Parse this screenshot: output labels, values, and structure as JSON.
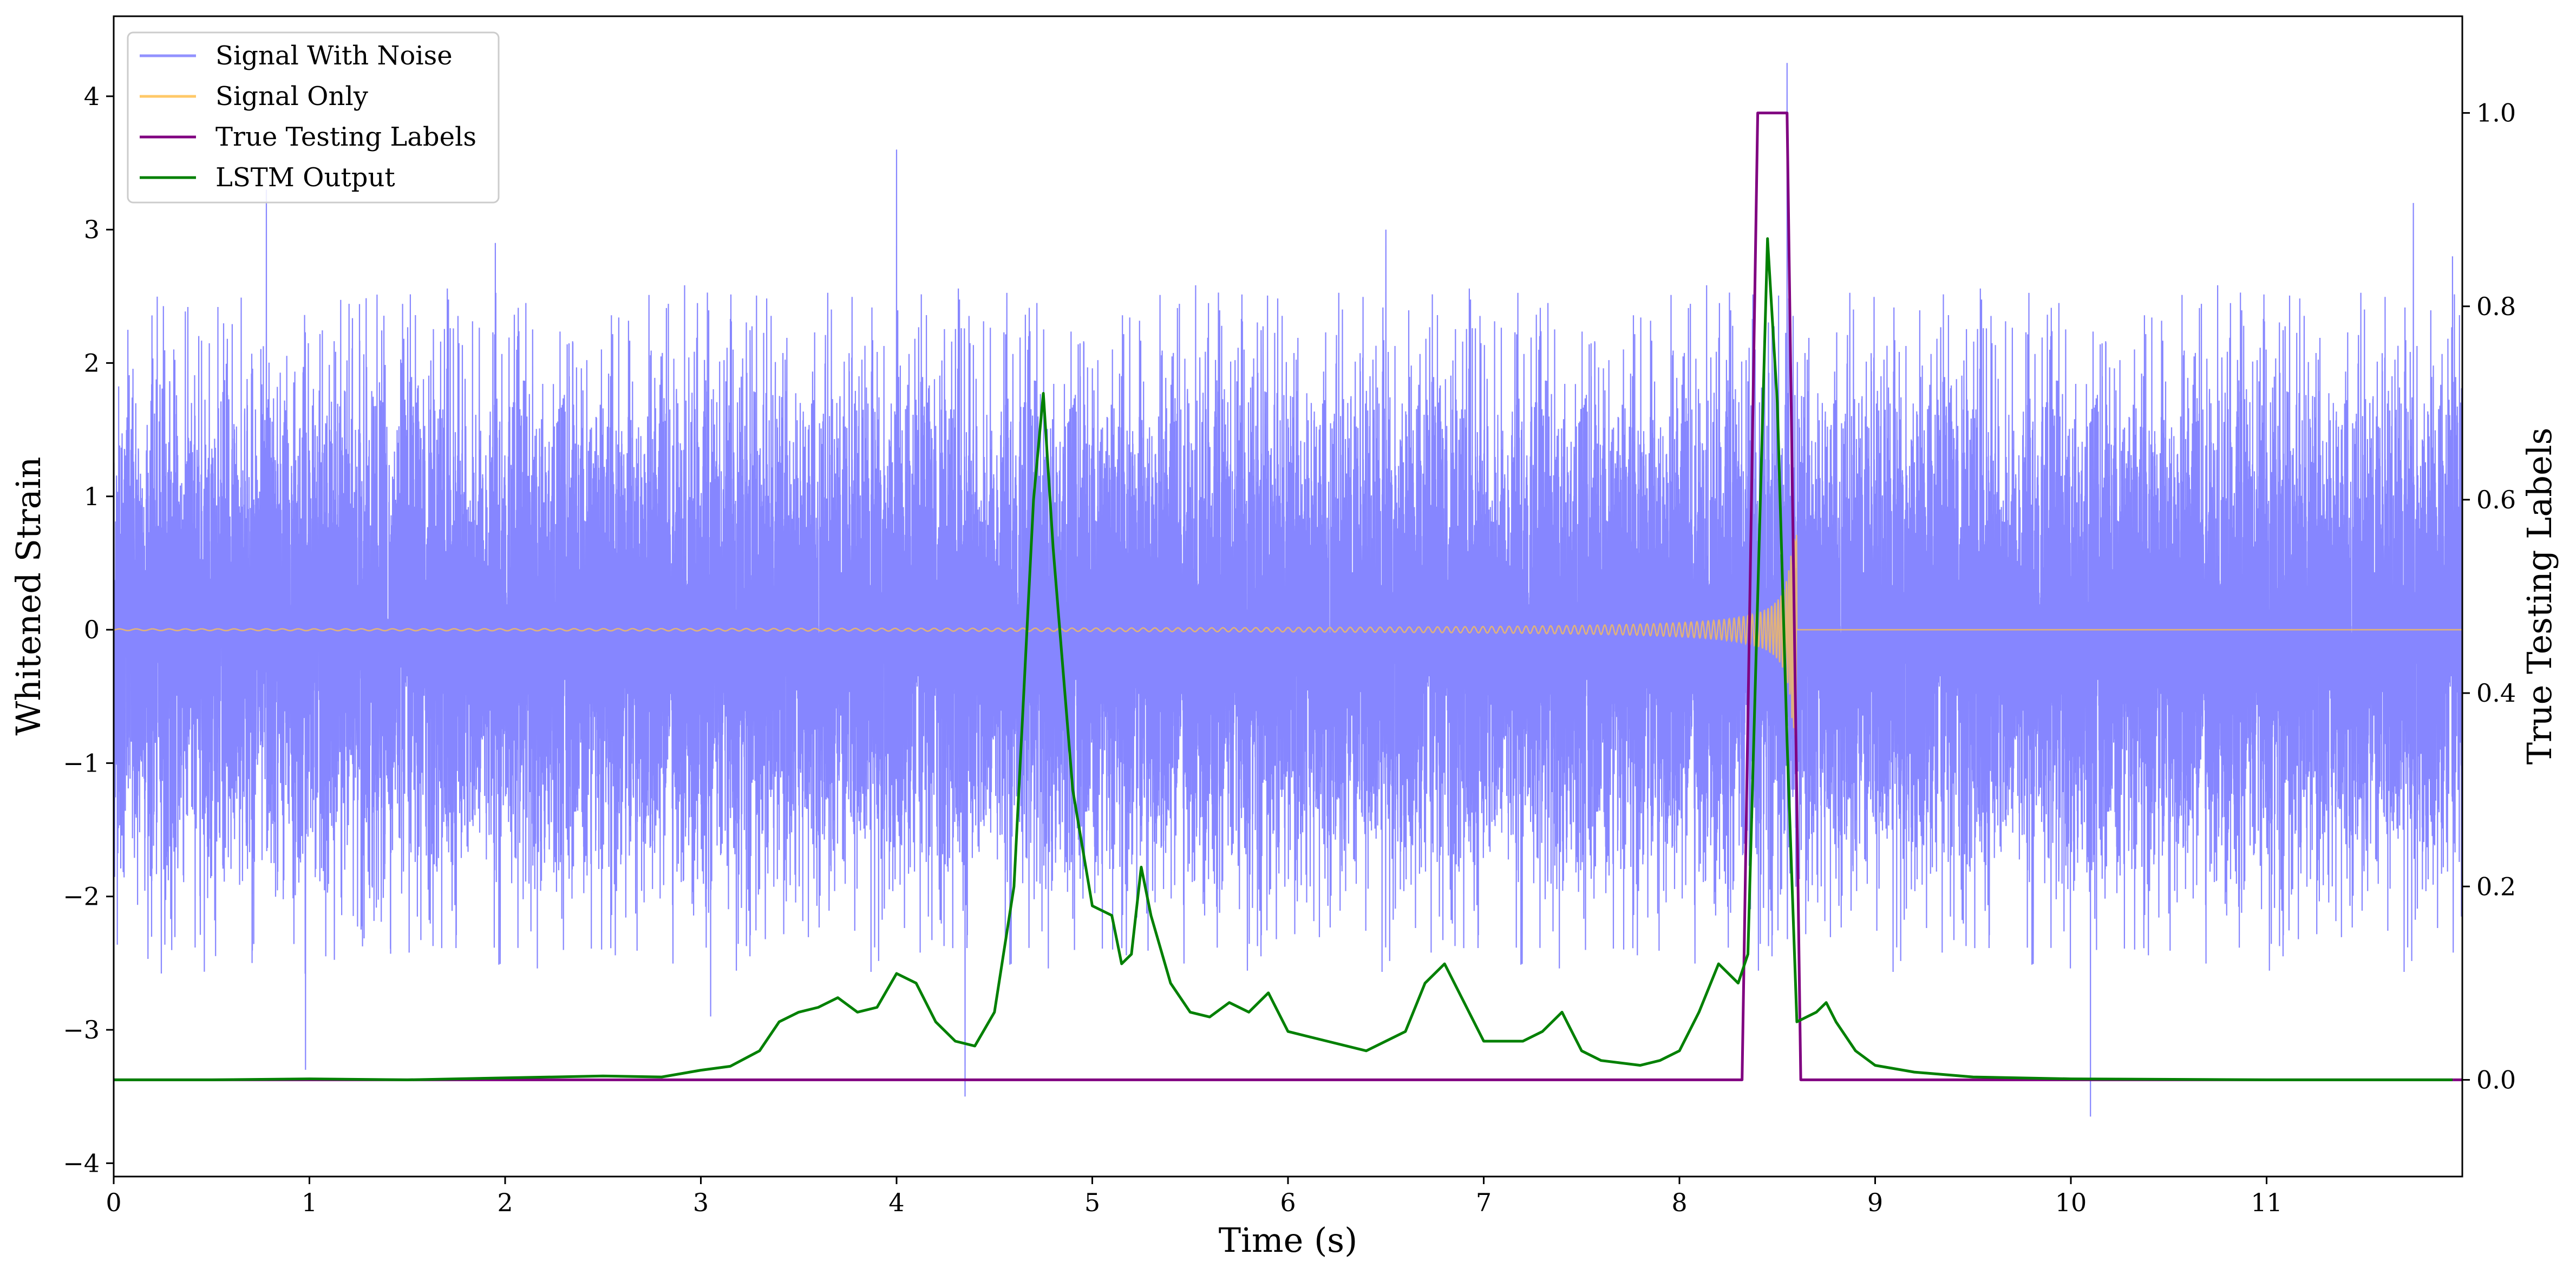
{
  "chart_data": {
    "type": "line",
    "title": "",
    "xlabel": "Time (s)",
    "ylabel": "Whitened Strain",
    "y2label": "True Testing Labels",
    "xlim": [
      0,
      12
    ],
    "ylim": [
      -4.1,
      4.6
    ],
    "y2lim": [
      -0.1,
      1.1
    ],
    "xticks": [
      0,
      1,
      2,
      3,
      4,
      5,
      6,
      7,
      8,
      9,
      10,
      11
    ],
    "yticks": [
      -4,
      -3,
      -2,
      -1,
      0,
      1,
      2,
      3,
      4
    ],
    "ytick_labels": [
      "−4",
      "−3",
      "−2",
      "−1",
      "0",
      "1",
      "2",
      "3",
      "4"
    ],
    "y2ticks": [
      0.0,
      0.2,
      0.4,
      0.6,
      0.8,
      1.0
    ],
    "y2tick_labels": [
      "0.0",
      "0.2",
      "0.4",
      "0.6",
      "0.8",
      "1.0"
    ],
    "grid": false,
    "legend_position": "top-left",
    "series": [
      {
        "name": "Signal With Noise",
        "color": "#7f7fff",
        "axis": "left",
        "kind": "noise",
        "std": 0.9,
        "spikes": [
          [
            0.78,
            3.3
          ],
          [
            0.98,
            -3.3
          ],
          [
            4.0,
            3.6
          ],
          [
            4.35,
            -3.5
          ],
          [
            8.55,
            4.25
          ],
          [
            10.1,
            -3.65
          ],
          [
            1.95,
            2.9
          ],
          [
            3.05,
            -2.9
          ],
          [
            6.5,
            3.0
          ],
          [
            11.75,
            3.2
          ],
          [
            11.95,
            2.8
          ]
        ]
      },
      {
        "name": "Signal Only",
        "color": "#ffc04d",
        "axis": "left",
        "kind": "chirp",
        "merger_time": 8.6,
        "peak_amplitude": 1.2
      },
      {
        "name": "True Testing Labels",
        "color": "#800080",
        "axis": "right",
        "x": [
          0,
          8.32,
          8.4,
          8.55,
          8.62,
          12.0
        ],
        "y": [
          0,
          0,
          1,
          1,
          0,
          0
        ]
      },
      {
        "name": "LSTM Output",
        "color": "#008000",
        "axis": "right",
        "x": [
          0,
          0.5,
          1.0,
          1.5,
          2.0,
          2.5,
          2.8,
          3.0,
          3.15,
          3.3,
          3.4,
          3.5,
          3.6,
          3.7,
          3.8,
          3.9,
          4.0,
          4.1,
          4.2,
          4.3,
          4.4,
          4.5,
          4.6,
          4.7,
          4.75,
          4.8,
          4.9,
          5.0,
          5.1,
          5.15,
          5.2,
          5.25,
          5.3,
          5.4,
          5.5,
          5.6,
          5.7,
          5.8,
          5.9,
          6.0,
          6.2,
          6.4,
          6.6,
          6.7,
          6.8,
          6.9,
          7.0,
          7.1,
          7.2,
          7.3,
          7.4,
          7.5,
          7.6,
          7.8,
          7.9,
          8.0,
          8.1,
          8.2,
          8.3,
          8.35,
          8.4,
          8.45,
          8.5,
          8.55,
          8.6,
          8.65,
          8.7,
          8.75,
          8.8,
          8.9,
          9.0,
          9.2,
          9.5,
          10.0,
          11.0,
          11.95
        ],
        "y": [
          0.0,
          0.0,
          0.001,
          0.0,
          0.002,
          0.004,
          0.003,
          0.01,
          0.014,
          0.03,
          0.06,
          0.07,
          0.075,
          0.085,
          0.07,
          0.075,
          0.11,
          0.1,
          0.06,
          0.04,
          0.035,
          0.07,
          0.2,
          0.6,
          0.71,
          0.55,
          0.3,
          0.18,
          0.17,
          0.12,
          0.13,
          0.22,
          0.17,
          0.1,
          0.07,
          0.065,
          0.08,
          0.07,
          0.09,
          0.05,
          0.04,
          0.03,
          0.05,
          0.1,
          0.12,
          0.08,
          0.04,
          0.04,
          0.04,
          0.05,
          0.07,
          0.03,
          0.02,
          0.015,
          0.02,
          0.03,
          0.07,
          0.12,
          0.1,
          0.13,
          0.5,
          0.87,
          0.7,
          0.35,
          0.06,
          0.065,
          0.07,
          0.08,
          0.06,
          0.03,
          0.015,
          0.008,
          0.003,
          0.001,
          0.0,
          0.0
        ]
      }
    ]
  }
}
